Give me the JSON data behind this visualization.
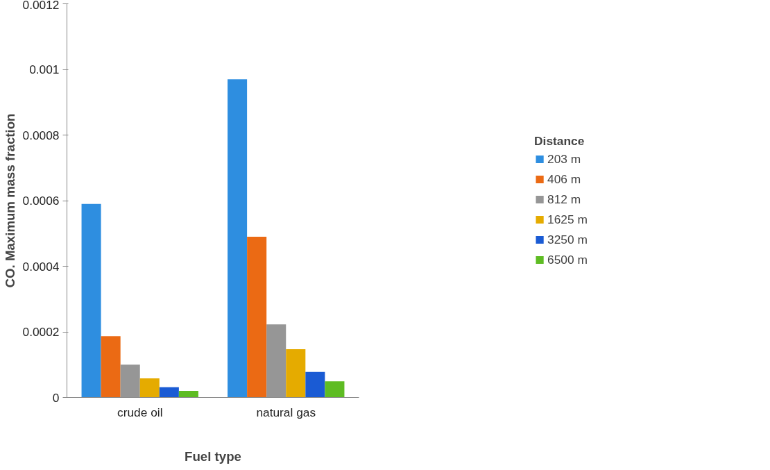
{
  "chart_data": {
    "type": "bar",
    "xlabel": "Fuel type",
    "ylabel": "CO. Maximum mass fraction",
    "legend_title": "Distance",
    "legend": "right",
    "categories": [
      "crude oil",
      "natural gas"
    ],
    "series": [
      {
        "name": "203 m",
        "color": "#2e8ee0",
        "values": [
          0.00059,
          0.00097
        ]
      },
      {
        "name": "406 m",
        "color": "#eb6a14",
        "values": [
          0.000187,
          0.00049
        ]
      },
      {
        "name": "812 m",
        "color": "#969696",
        "values": [
          0.0001,
          0.000223
        ]
      },
      {
        "name": "1625 m",
        "color": "#e5ab00",
        "values": [
          5.8e-05,
          0.000147
        ]
      },
      {
        "name": "3250 m",
        "color": "#1a5bd4",
        "values": [
          3.1e-05,
          7.8e-05
        ]
      },
      {
        "name": "6500 m",
        "color": "#5ebc23",
        "values": [
          2e-05,
          4.9e-05
        ]
      }
    ],
    "ylim": [
      0,
      0.0012
    ],
    "yticks": [
      0,
      0.0002,
      0.0004,
      0.0006,
      0.0008,
      0.001,
      0.0012
    ],
    "grid": false
  }
}
